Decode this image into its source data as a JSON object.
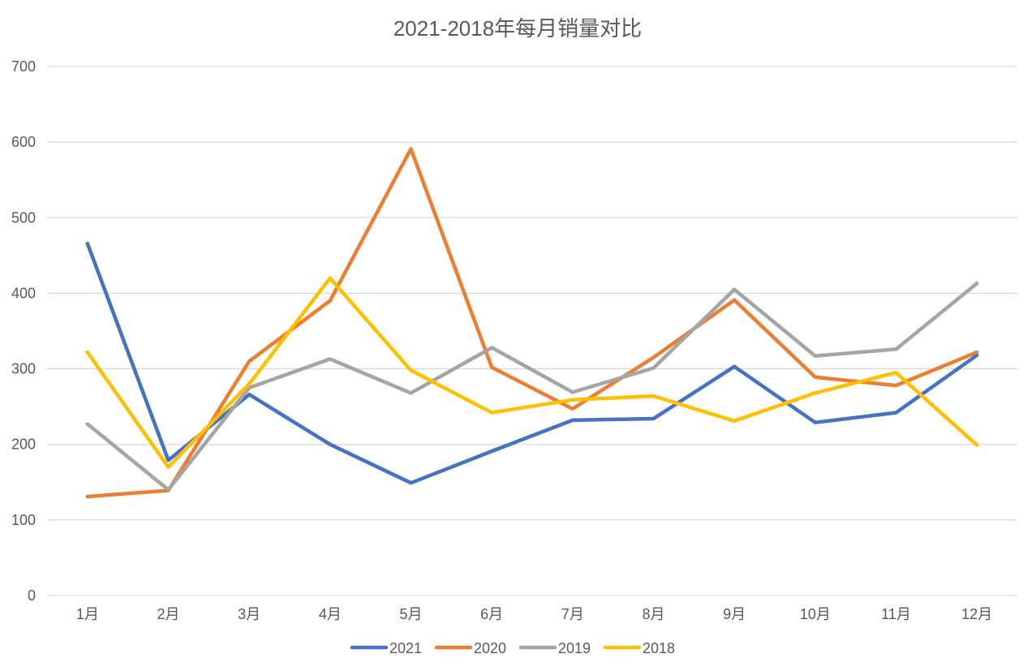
{
  "chart_data": {
    "type": "line",
    "title": "2021-2018年每月销量对比",
    "xlabel": "",
    "ylabel": "",
    "ylim": [
      0,
      700
    ],
    "yticks": [
      0,
      100,
      200,
      300,
      400,
      500,
      600,
      700
    ],
    "grid": true,
    "legend_position": "bottom",
    "categories": [
      "1月",
      "2月",
      "3月",
      "4月",
      "5月",
      "6月",
      "7月",
      "8月",
      "9月",
      "10月",
      "11月",
      "12月"
    ],
    "series": [
      {
        "name": "2021",
        "color": "#4472C4",
        "values": [
          466,
          179,
          266,
          200,
          149,
          191,
          232,
          234,
          303,
          229,
          242,
          318
        ]
      },
      {
        "name": "2020",
        "color": "#ED7D31",
        "values": [
          131,
          139,
          310,
          390,
          591,
          302,
          247,
          315,
          391,
          289,
          278,
          322
        ]
      },
      {
        "name": "2019",
        "color": "#A5A5A5",
        "values": [
          227,
          140,
          275,
          313,
          268,
          328,
          269,
          301,
          405,
          317,
          326,
          413
        ]
      },
      {
        "name": "2018",
        "color": "#FFC000",
        "values": [
          322,
          170,
          280,
          420,
          298,
          242,
          259,
          264,
          231,
          268,
          295,
          199
        ]
      }
    ]
  }
}
